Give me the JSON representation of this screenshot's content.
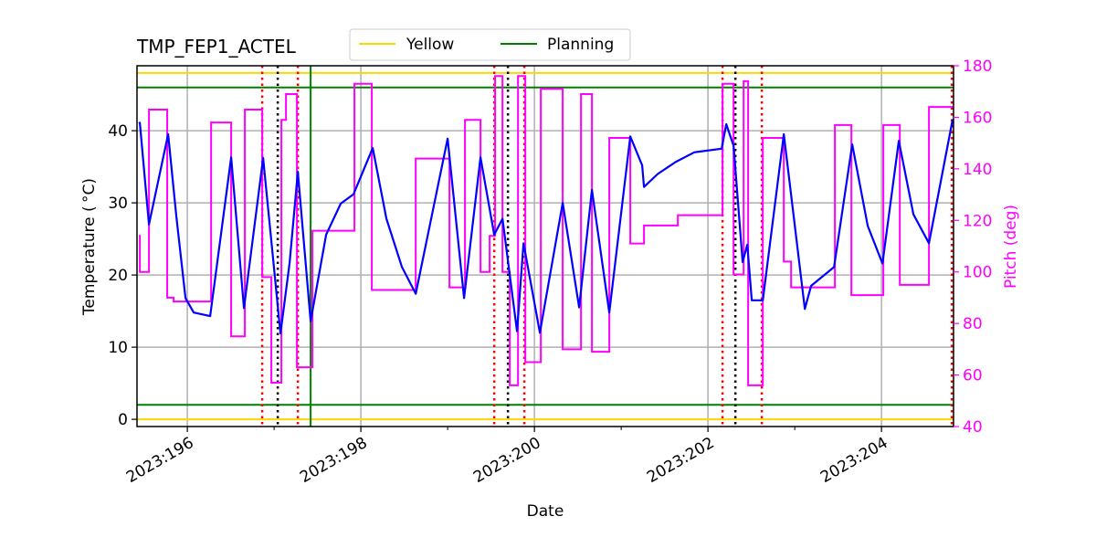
{
  "chart_data": {
    "type": "line",
    "title": "TMP_FEP1_ACTEL",
    "xlabel": "Date",
    "ylabel": "Temperature ($^\\circ$C)",
    "ylabel_display": "Temperature ( °C)",
    "y2label": "Pitch (deg)",
    "xlim": [
      195.42,
      204.83
    ],
    "ylim": [
      -1,
      49
    ],
    "y2lim": [
      40,
      180
    ],
    "grid": true,
    "legend_position": "top-center",
    "x_ticks": [
      {
        "value": 196,
        "label": "2023:196"
      },
      {
        "value": 198,
        "label": "2023:198"
      },
      {
        "value": 200,
        "label": "2023:200"
      },
      {
        "value": 202,
        "label": "2023:202"
      },
      {
        "value": 204,
        "label": "2023:204"
      }
    ],
    "x_minor_ticks": [
      197,
      199,
      201,
      203
    ],
    "y_ticks": [
      0,
      10,
      20,
      30,
      40
    ],
    "y2_ticks": [
      40,
      60,
      80,
      100,
      120,
      140,
      160,
      180
    ],
    "colors": {
      "temperature": "#0000ff",
      "pitch": "#ff00ff",
      "yellow": "#ffd700",
      "planning": "#008000",
      "red_marker": "#ff0000",
      "black_marker": "#000000",
      "green_marker": "#008000"
    },
    "legend": [
      {
        "name": "Yellow",
        "color": "#ffd700"
      },
      {
        "name": "Planning",
        "color": "#008000"
      }
    ],
    "limit_lines": [
      {
        "name": "Yellow",
        "values": [
          48,
          0
        ],
        "color": "#ffd700"
      },
      {
        "name": "Planning",
        "values": [
          46,
          2
        ],
        "color": "#008000"
      }
    ],
    "vertical_markers": {
      "red_dotted": [
        196.863,
        197.274,
        199.537,
        199.884,
        202.168,
        202.621,
        204.811
      ],
      "black_dotted": [
        197.042,
        199.695,
        202.316
      ],
      "green_solid": [
        197.421
      ]
    },
    "temperature": [
      [
        195.442,
        41.0
      ],
      [
        195.453,
        41.1
      ],
      [
        195.558,
        27.0
      ],
      [
        195.779,
        39.5
      ],
      [
        195.874,
        28.1
      ],
      [
        195.979,
        16.8
      ],
      [
        196.074,
        14.8
      ],
      [
        196.263,
        14.3
      ],
      [
        196.505,
        36.3
      ],
      [
        196.653,
        15.4
      ],
      [
        196.874,
        36.2
      ],
      [
        197.074,
        11.9
      ],
      [
        197.179,
        21.7
      ],
      [
        197.274,
        34.3
      ],
      [
        197.421,
        13.6
      ],
      [
        197.6,
        25.6
      ],
      [
        197.768,
        29.9
      ],
      [
        197.916,
        31.2
      ],
      [
        198.137,
        37.6
      ],
      [
        198.295,
        27.8
      ],
      [
        198.474,
        21.1
      ],
      [
        198.632,
        17.4
      ],
      [
        199.0,
        38.9
      ],
      [
        199.189,
        16.8
      ],
      [
        199.379,
        36.3
      ],
      [
        199.537,
        25.6
      ],
      [
        199.632,
        27.8
      ],
      [
        199.8,
        12.2
      ],
      [
        199.874,
        24.4
      ],
      [
        200.063,
        12.0
      ],
      [
        200.326,
        30.0
      ],
      [
        200.516,
        15.5
      ],
      [
        200.663,
        31.8
      ],
      [
        200.863,
        14.8
      ],
      [
        201.105,
        39.2
      ],
      [
        201.242,
        35.2
      ],
      [
        201.263,
        32.2
      ],
      [
        201.421,
        34.0
      ],
      [
        201.632,
        35.7
      ],
      [
        201.842,
        37.0
      ],
      [
        202.158,
        37.5
      ],
      [
        202.211,
        40.9
      ],
      [
        202.295,
        37.9
      ],
      [
        202.4,
        21.8
      ],
      [
        202.453,
        24.2
      ],
      [
        202.505,
        16.5
      ],
      [
        202.632,
        16.5
      ],
      [
        202.874,
        39.5
      ],
      [
        203.116,
        15.3
      ],
      [
        203.189,
        18.5
      ],
      [
        203.453,
        21.1
      ],
      [
        203.663,
        38.1
      ],
      [
        203.842,
        26.8
      ],
      [
        204.011,
        21.6
      ],
      [
        204.2,
        38.6
      ],
      [
        204.368,
        28.4
      ],
      [
        204.547,
        24.4
      ],
      [
        204.821,
        41.6
      ]
    ],
    "pitch_steps": [
      [
        195.442,
        114
      ],
      [
        195.453,
        100
      ],
      [
        195.558,
        163
      ],
      [
        195.768,
        90
      ],
      [
        195.842,
        88.5
      ],
      [
        196.274,
        158
      ],
      [
        196.505,
        75
      ],
      [
        196.663,
        163
      ],
      [
        196.863,
        98
      ],
      [
        196.968,
        57
      ],
      [
        197.084,
        159
      ],
      [
        197.137,
        169
      ],
      [
        197.263,
        63
      ],
      [
        197.442,
        116
      ],
      [
        197.926,
        173
      ],
      [
        198.126,
        93
      ],
      [
        198.632,
        144
      ],
      [
        199.021,
        94
      ],
      [
        199.2,
        159
      ],
      [
        199.379,
        100
      ],
      [
        199.484,
        114
      ],
      [
        199.547,
        176
      ],
      [
        199.632,
        100
      ],
      [
        199.716,
        56
      ],
      [
        199.811,
        176
      ],
      [
        199.895,
        65
      ],
      [
        200.074,
        171
      ],
      [
        200.326,
        70
      ],
      [
        200.537,
        169
      ],
      [
        200.663,
        69
      ],
      [
        200.863,
        152
      ],
      [
        201.105,
        111
      ],
      [
        201.263,
        118
      ],
      [
        201.653,
        122
      ],
      [
        202.168,
        173
      ],
      [
        202.295,
        99
      ],
      [
        202.411,
        174
      ],
      [
        202.463,
        56
      ],
      [
        202.632,
        152
      ],
      [
        202.874,
        104
      ],
      [
        202.958,
        94
      ],
      [
        203.463,
        157
      ],
      [
        203.653,
        91
      ],
      [
        204.021,
        157
      ],
      [
        204.211,
        95
      ],
      [
        204.547,
        164
      ],
      [
        204.82,
        164
      ]
    ]
  }
}
